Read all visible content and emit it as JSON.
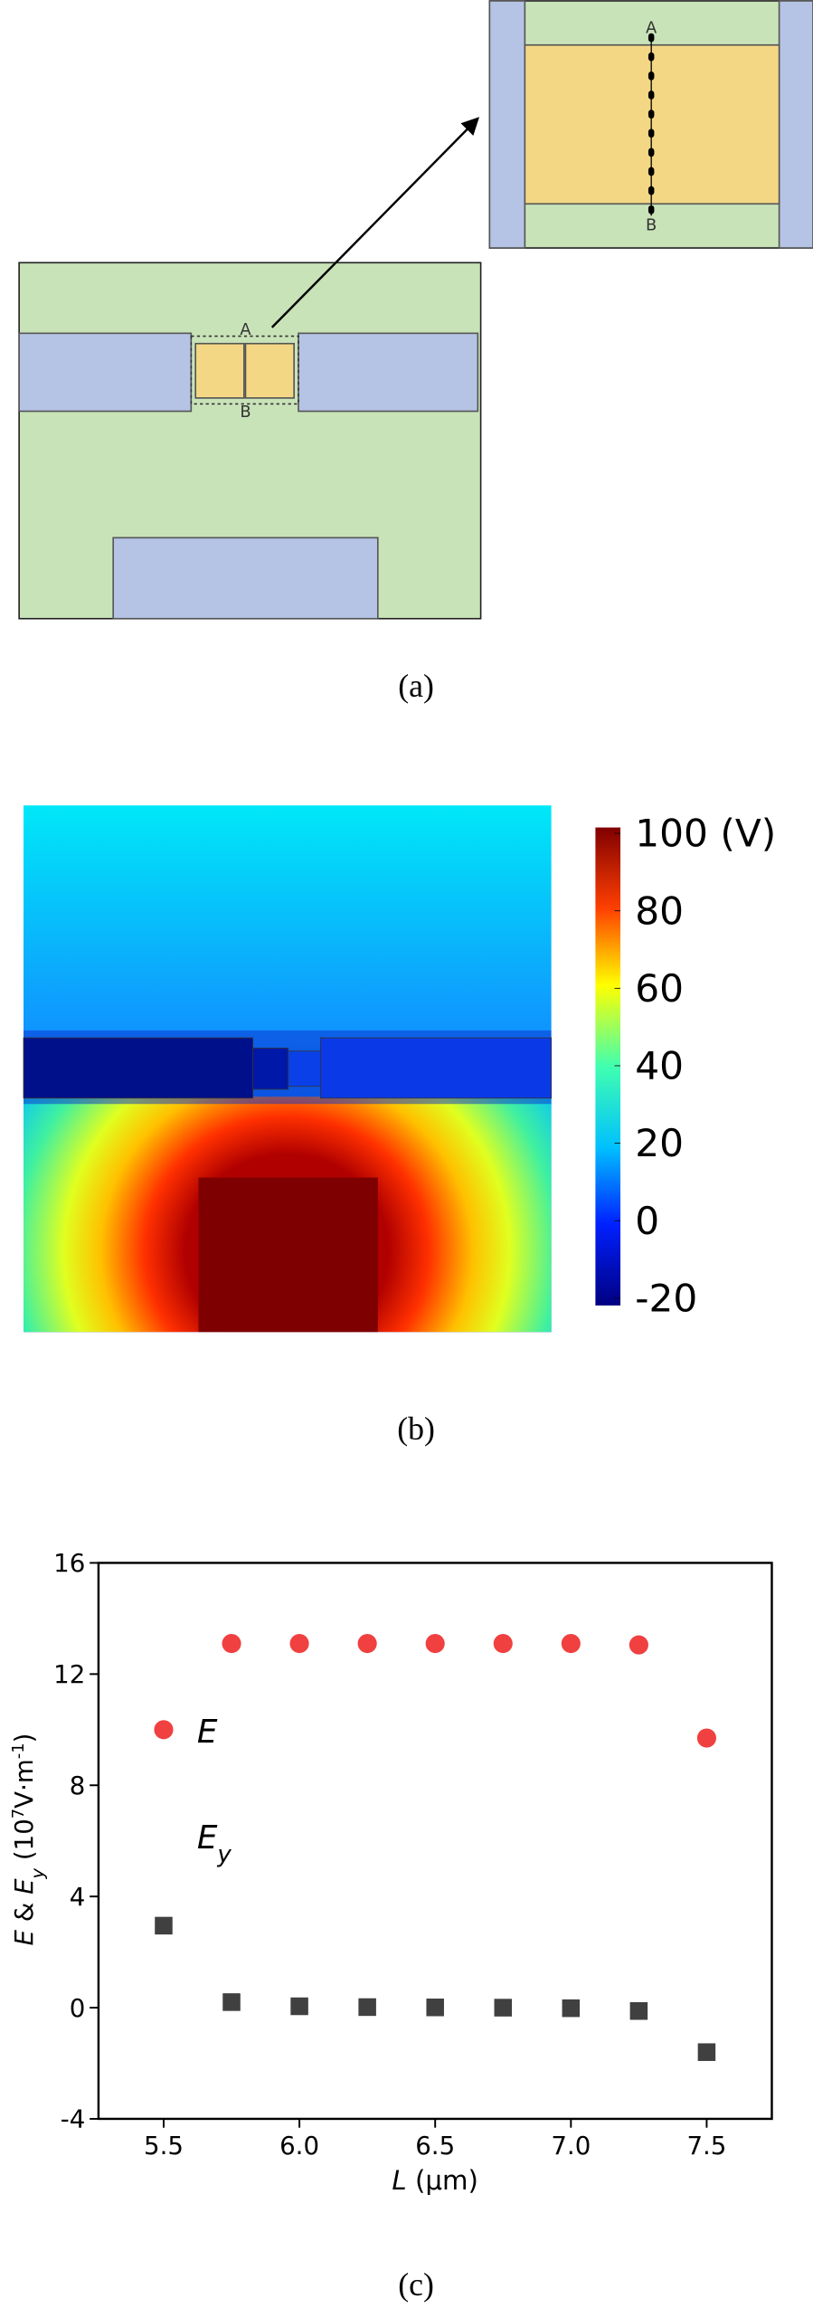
{
  "panel_a": {
    "labels": [
      "A",
      "B",
      "A",
      "B"
    ],
    "caption": "(a)"
  },
  "panel_b": {
    "caption": "(b)"
  },
  "panel_c": {
    "caption": "(c)"
  },
  "chart_data": [
    {
      "type": "colorbar",
      "lim": [
        -20,
        100
      ],
      "ticks": [
        {
          "value": 100,
          "label": "100 (V)"
        },
        80,
        60,
        40,
        20,
        0,
        -20
      ]
    },
    {
      "type": "scatter",
      "x_label": [
        "L",
        " (μm)"
      ],
      "y_label": [
        "E",
        " & ",
        "E",
        "y",
        " (10",
        "7",
        "V·m",
        "-1",
        ")"
      ],
      "xlim": [
        5.26,
        7.74
      ],
      "ylim": [
        -4,
        16
      ],
      "xticks": [
        5.5,
        {
          "value": 6,
          "label": "6.0"
        },
        6.5,
        {
          "value": 7,
          "label": "7.0"
        },
        7.5
      ],
      "yticks": [
        -4,
        0,
        4,
        8,
        12,
        16
      ],
      "x": [
        5.5,
        5.75,
        6.0,
        6.25,
        6.5,
        6.75,
        7.0,
        7.25,
        7.5
      ],
      "series": [
        {
          "name": "E",
          "color": "#f04040",
          "marker": "circle",
          "values": [
            10.0,
            13.1,
            13.1,
            13.1,
            13.1,
            13.1,
            13.1,
            13.05,
            9.7
          ]
        },
        {
          "name": "E",
          "name_subscript": "y",
          "color": "#404040",
          "marker": "square",
          "values": [
            2.95,
            0.2,
            0.05,
            0.02,
            0.01,
            0.0,
            -0.02,
            -0.12,
            -1.6
          ]
        }
      ]
    }
  ]
}
